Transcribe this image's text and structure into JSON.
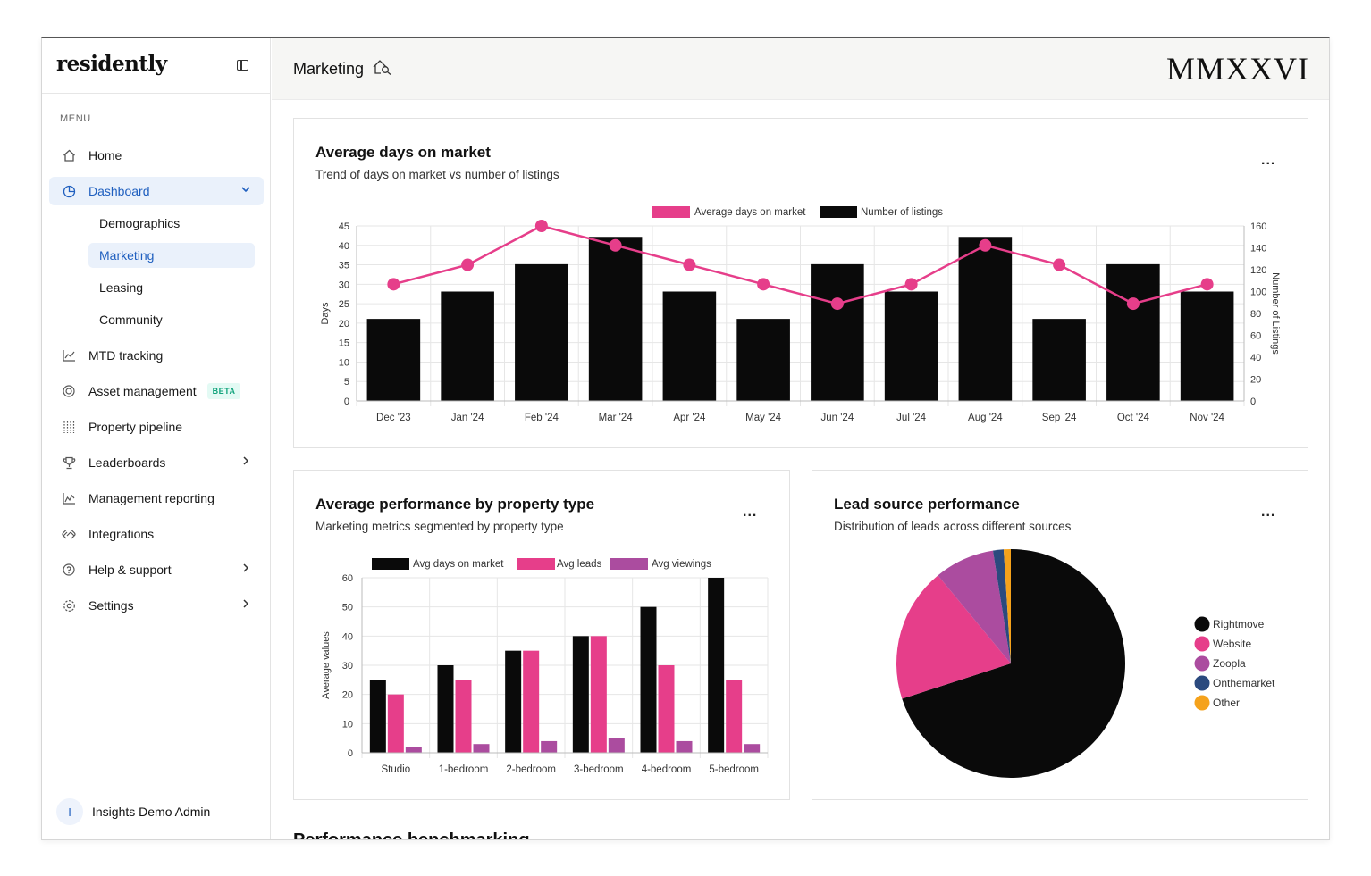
{
  "sidebar": {
    "brand": "residently",
    "menu_label": "MENU",
    "items": [
      {
        "label": "Home"
      },
      {
        "label": "Dashboard"
      },
      {
        "label": "MTD tracking"
      },
      {
        "label": "Asset management",
        "badge": "BETA"
      },
      {
        "label": "Property pipeline"
      },
      {
        "label": "Leaderboards"
      },
      {
        "label": "Management reporting"
      },
      {
        "label": "Integrations"
      },
      {
        "label": "Help & support"
      },
      {
        "label": "Settings"
      }
    ],
    "dashboard_subitems": [
      {
        "label": "Demographics"
      },
      {
        "label": "Marketing"
      },
      {
        "label": "Leasing"
      },
      {
        "label": "Community"
      }
    ],
    "user": {
      "initial": "I",
      "name": "Insights Demo Admin"
    }
  },
  "header": {
    "title": "Marketing",
    "year": "MMXXVI"
  },
  "cards": {
    "days_on_market": {
      "title": "Average days on market",
      "subtitle": "Trend of days on market vs number of listings",
      "menu": "..."
    },
    "property_type": {
      "title": "Average performance by property type",
      "subtitle": "Marketing metrics segmented by property type",
      "menu": "..."
    },
    "lead_source": {
      "title": "Lead source performance",
      "subtitle": "Distribution of leads across different sources",
      "menu": "..."
    }
  },
  "next_section": "Performance benchmarking",
  "colors": {
    "pink": "#e63e8a",
    "black": "#0a0a0a",
    "purple": "#ab4c9f",
    "navy": "#2b4a7e",
    "orange": "#f5a21b",
    "accent_blue": "#1f5fbf"
  },
  "chart_data": [
    {
      "type": "bar",
      "categories": [
        "Dec '23",
        "Jan '24",
        "Feb '24",
        "Mar '24",
        "Apr '24",
        "May '24",
        "Jun '24",
        "Jul '24",
        "Aug '24",
        "Sep '24",
        "Oct '24",
        "Nov '24"
      ],
      "series": [
        {
          "name": "Average days on market",
          "type": "line",
          "axis": "left",
          "values": [
            30,
            35,
            45,
            40,
            35,
            30,
            25,
            30,
            40,
            35,
            25,
            30
          ]
        },
        {
          "name": "Number of listings",
          "type": "bar",
          "axis": "right",
          "values": [
            75,
            100,
            125,
            150,
            100,
            75,
            125,
            100,
            150,
            75,
            125,
            100
          ]
        }
      ],
      "ylabel": "Days",
      "y2label": "Number of Listings",
      "ylim": [
        0,
        45
      ],
      "yticks": [
        0,
        5,
        10,
        15,
        20,
        25,
        30,
        35,
        40,
        45
      ],
      "y2lim": [
        0,
        160
      ],
      "y2ticks": [
        0,
        20,
        40,
        60,
        80,
        100,
        120,
        140,
        160
      ],
      "grid": true,
      "legend": "top"
    },
    {
      "type": "bar",
      "categories": [
        "Studio",
        "1-bedroom",
        "2-bedroom",
        "3-bedroom",
        "4-bedroom",
        "5-bedroom"
      ],
      "series": [
        {
          "name": "Avg days on market",
          "values": [
            25,
            30,
            35,
            40,
            50,
            60
          ]
        },
        {
          "name": "Avg leads",
          "values": [
            20,
            25,
            35,
            40,
            30,
            25
          ]
        },
        {
          "name": "Avg viewings",
          "values": [
            2,
            3,
            4,
            5,
            4,
            3
          ]
        }
      ],
      "ylabel": "Average values",
      "ylim": [
        0,
        60
      ],
      "yticks": [
        0,
        10,
        20,
        30,
        40,
        50,
        60
      ],
      "grid": true,
      "legend": "top"
    },
    {
      "type": "pie",
      "labels": [
        "Rightmove",
        "Website",
        "Zoopla",
        "Onthemarket",
        "Other"
      ],
      "values": [
        70,
        19,
        8.5,
        1.5,
        1
      ],
      "legend": "right"
    }
  ]
}
